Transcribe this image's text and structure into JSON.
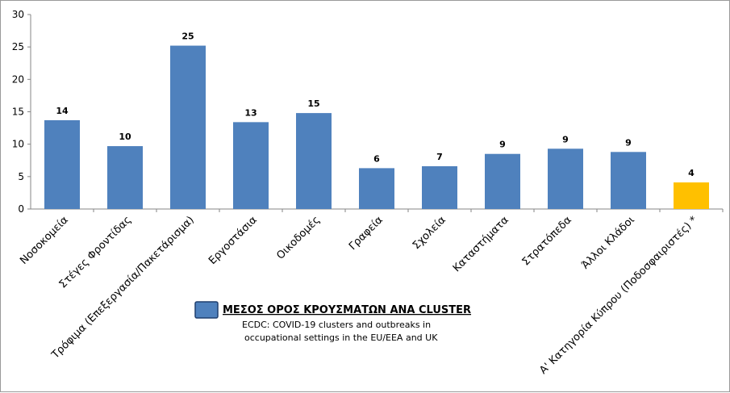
{
  "chart_data": {
    "type": "bar",
    "categories": [
      "Νοσοκομεία",
      "Στέγες Φροντίδας",
      "Τρόφιμα (Επεξεργασία/Πακετάρισμα)",
      "Εργοστάσια",
      "Οικοδομές",
      "Γραφεία",
      "Σχολεία",
      "Καταστήματα",
      "Στρατόπεδα",
      "Άλλοι Κλάδοι",
      "Α' Κατηγορία Κύπρου (Ποδοσφαιριστές) *"
    ],
    "values": [
      13.7,
      9.7,
      25.2,
      13.4,
      14.8,
      6.3,
      6.6,
      8.5,
      9.3,
      8.8,
      4.1
    ],
    "data_labels": [
      "14",
      "10",
      "25",
      "13",
      "15",
      "6",
      "7",
      "9",
      "9",
      "9",
      "4"
    ],
    "colors": [
      "#4f81bd",
      "#4f81bd",
      "#4f81bd",
      "#4f81bd",
      "#4f81bd",
      "#4f81bd",
      "#4f81bd",
      "#4f81bd",
      "#4f81bd",
      "#4f81bd",
      "#ffc000"
    ],
    "ylim": [
      0,
      30
    ],
    "yticks": [
      0,
      5,
      10,
      15,
      20,
      25,
      30
    ],
    "grid": false,
    "legend": {
      "title": "ΜΕΣΟΣ ΟΡΟΣ ΚΡΟΥΣΜΑΤΩΝ ΑΝΑ CLUSTER",
      "source_line1": "ECDC: COVID-19 clusters and outbreaks in",
      "source_line2": "occupational settings in the EU/EEA  and UK",
      "swatch_color": "#4f81bd",
      "placement": "bottom-center"
    }
  }
}
